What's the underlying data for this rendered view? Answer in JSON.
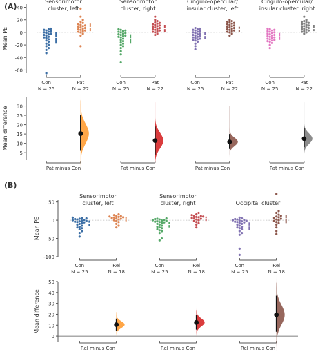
{
  "chart_data": [
    {
      "panel": "(A)",
      "type": "scatter",
      "ylabel": "Mean PE",
      "ylim": [
        -65,
        45
      ],
      "yticks": [
        -60,
        -40,
        -20,
        0,
        20,
        40
      ],
      "groups": [
        {
          "title_lines": [
            "Sensorimotor",
            "cluster, left"
          ],
          "categories": [
            {
              "label": "Con",
              "n_label": "N = 25",
              "color": "#3b6ea5",
              "values": [
                -65,
                -33,
                -28,
                -25,
                -22,
                -20,
                -18,
                -15,
                -13,
                -11,
                -9,
                -7,
                -5,
                -4,
                -2,
                -1,
                0,
                1,
                2,
                3,
                4,
                5,
                6,
                -3,
                -8
              ],
              "mean": -8,
              "ci": [
                -18,
                0
              ]
            },
            {
              "label": "Pat",
              "n_label": "N = 22",
              "color": "#dd8452",
              "values": [
                -22,
                -5,
                -2,
                0,
                1,
                2,
                3,
                4,
                5,
                6,
                7,
                8,
                9,
                10,
                11,
                12,
                13,
                15,
                17,
                20,
                25,
                38
              ],
              "mean": 8,
              "ci": [
                2,
                14
              ]
            }
          ]
        },
        {
          "title_lines": [
            "Sensorimotor",
            "cluster, right"
          ],
          "categories": [
            {
              "label": "Con",
              "n_label": "N = 25",
              "color": "#55a868",
              "values": [
                -48,
                -35,
                -30,
                -25,
                -22,
                -20,
                -18,
                -16,
                -14,
                -12,
                -10,
                -8,
                -6,
                -5,
                -4,
                -3,
                -2,
                -1,
                0,
                1,
                2,
                3,
                4,
                5,
                -7
              ],
              "mean": -10,
              "ci": [
                -18,
                -3
              ]
            },
            {
              "label": "Pat",
              "n_label": "N = 22",
              "color": "#c44e52",
              "values": [
                -4,
                -2,
                0,
                1,
                2,
                3,
                4,
                5,
                6,
                7,
                8,
                9,
                10,
                11,
                12,
                13,
                14,
                15,
                16,
                18,
                20,
                25
              ],
              "mean": 6,
              "ci": [
                0,
                12
              ]
            }
          ]
        },
        {
          "title_lines": [
            "Cingulo-opercular/",
            "insular cluster, left"
          ],
          "categories": [
            {
              "label": "Con",
              "n_label": "N = 25",
              "color": "#8172b2",
              "values": [
                -27,
                -22,
                -18,
                -15,
                -13,
                -11,
                -9,
                -8,
                -7,
                -6,
                -5,
                -4,
                -3,
                -2,
                -1,
                0,
                1,
                2,
                3,
                4,
                5,
                6,
                7,
                -10,
                -12
              ],
              "mean": -5,
              "ci": [
                -11,
                1
              ]
            },
            {
              "label": "Pat",
              "n_label": "N = 22",
              "color": "#8c564b",
              "values": [
                -5,
                -2,
                0,
                1,
                2,
                3,
                4,
                5,
                6,
                7,
                8,
                9,
                10,
                11,
                12,
                13,
                14,
                15,
                16,
                17,
                18,
                20
              ],
              "mean": 5,
              "ci": [
                1,
                9
              ]
            }
          ]
        },
        {
          "title_lines": [
            "Cingulo-opercular/",
            "insular cluster, right"
          ],
          "categories": [
            {
              "label": "Con",
              "n_label": "N = 25",
              "color": "#e377c2",
              "values": [
                -25,
                -20,
                -17,
                -15,
                -13,
                -11,
                -10,
                -9,
                -8,
                -7,
                -6,
                -5,
                -4,
                -3,
                -2,
                -1,
                0,
                1,
                2,
                3,
                4,
                5,
                6,
                -12,
                -14
              ],
              "mean": -7,
              "ci": [
                -12,
                -1
              ]
            },
            {
              "label": "Pat",
              "n_label": "N = 22",
              "color": "#7f7f7f",
              "values": [
                -2,
                0,
                1,
                2,
                3,
                4,
                5,
                6,
                7,
                8,
                9,
                10,
                11,
                12,
                13,
                14,
                15,
                16,
                17,
                18,
                20,
                25
              ],
              "mean": 6,
              "ci": [
                2,
                12
              ]
            }
          ]
        }
      ]
    },
    {
      "panel": "(A)",
      "type": "area",
      "ylabel": "Mean difference",
      "ylim": [
        1,
        35
      ],
      "yticks": [
        5,
        10,
        15,
        20,
        25,
        30
      ],
      "xlabels": [
        "Pat minus Con",
        "Pat minus Con",
        "Pat minus Con",
        "Pat minus Con"
      ],
      "differences": [
        {
          "color": "#ff9c33",
          "mean": 15.2,
          "ci": [
            6,
            25
          ],
          "spread": 33
        },
        {
          "color": "#d62728",
          "mean": 11.5,
          "ci": [
            4,
            19
          ],
          "spread": 32
        },
        {
          "color": "#8c564b",
          "mean": 10.8,
          "ci": [
            7,
            15
          ],
          "spread": 30
        },
        {
          "color": "#7f7f7f",
          "mean": 12.5,
          "ci": [
            8,
            18
          ],
          "spread": 32
        }
      ]
    },
    {
      "panel": "(B)",
      "type": "scatter",
      "ylabel": "Mean PE",
      "ylim": [
        -100,
        55
      ],
      "yticks": [
        -100,
        -50,
        0,
        50
      ],
      "groups": [
        {
          "title_lines": [
            "Sensorimotor",
            "cluster, left"
          ],
          "categories": [
            {
              "label": "Con",
              "n_label": "N = 25",
              "color": "#3b6ea5",
              "values": [
                -45,
                -35,
                -30,
                -25,
                -22,
                -18,
                -15,
                -12,
                -10,
                -8,
                -6,
                -5,
                -4,
                -3,
                -2,
                -1,
                0,
                1,
                2,
                3,
                4,
                5,
                6,
                7,
                -20
              ],
              "mean": -8,
              "ci": [
                -16,
                -1
              ]
            },
            {
              "label": "Rel",
              "n_label": "N = 18",
              "color": "#dd8452",
              "values": [
                -20,
                -15,
                -10,
                -5,
                -2,
                0,
                2,
                4,
                5,
                6,
                7,
                8,
                9,
                10,
                11,
                12,
                14,
                16
              ],
              "mean": 3,
              "ci": [
                -3,
                8
              ]
            }
          ]
        },
        {
          "title_lines": [
            "Sensorimotor",
            "cluster, right"
          ],
          "categories": [
            {
              "label": "Con",
              "n_label": "N = 25",
              "color": "#55a868",
              "values": [
                -55,
                -50,
                -35,
                -28,
                -25,
                -20,
                -18,
                -15,
                -12,
                -10,
                -8,
                -6,
                -5,
                -4,
                -3,
                -2,
                -1,
                0,
                1,
                2,
                3,
                4,
                5,
                -22,
                -30
              ],
              "mean": -12,
              "ci": [
                -20,
                -4
              ]
            },
            {
              "label": "Rel",
              "n_label": "N = 18",
              "color": "#c44e52",
              "values": [
                -20,
                -12,
                -8,
                -5,
                -2,
                0,
                2,
                4,
                5,
                6,
                8,
                9,
                10,
                11,
                12,
                14,
                16,
                20
              ],
              "mean": 4,
              "ci": [
                -2,
                10
              ]
            }
          ]
        },
        {
          "title_lines": [
            "Occipital cluster"
          ],
          "categories": [
            {
              "label": "Con",
              "n_label": "N = 25",
              "color": "#8172b2",
              "values": [
                -95,
                -78,
                -40,
                -35,
                -30,
                -25,
                -22,
                -20,
                -18,
                -15,
                -12,
                -10,
                -8,
                -6,
                -5,
                -4,
                -3,
                -2,
                -1,
                0,
                1,
                2,
                3,
                5,
                7
              ],
              "mean": -16,
              "ci": [
                -28,
                -6
              ]
            },
            {
              "label": "Rel",
              "n_label": "N = 18",
              "color": "#8c564b",
              "values": [
                -38,
                -30,
                -20,
                -12,
                -8,
                -5,
                -2,
                0,
                2,
                4,
                6,
                8,
                10,
                12,
                15,
                20,
                25,
                72
              ],
              "mean": 4,
              "ci": [
                -8,
                15
              ]
            }
          ]
        }
      ]
    },
    {
      "panel": "(B)",
      "type": "area",
      "ylabel": "Mean difference",
      "ylim": [
        -5,
        50
      ],
      "yticks": [
        0,
        10,
        20,
        30,
        40,
        50
      ],
      "xlabels": [
        "Rel minus Con",
        "Rel minus Con",
        "Rel minus Con"
      ],
      "differences": [
        {
          "color": "#ff9c33",
          "mean": 10.5,
          "ci": [
            5,
            16
          ],
          "spread": 22
        },
        {
          "color": "#d62728",
          "mean": 12.5,
          "ci": [
            6,
            19
          ],
          "spread": 24
        },
        {
          "color": "#8c564b",
          "mean": 19.5,
          "ci": [
            4,
            37
          ],
          "spread": 49
        }
      ]
    }
  ]
}
